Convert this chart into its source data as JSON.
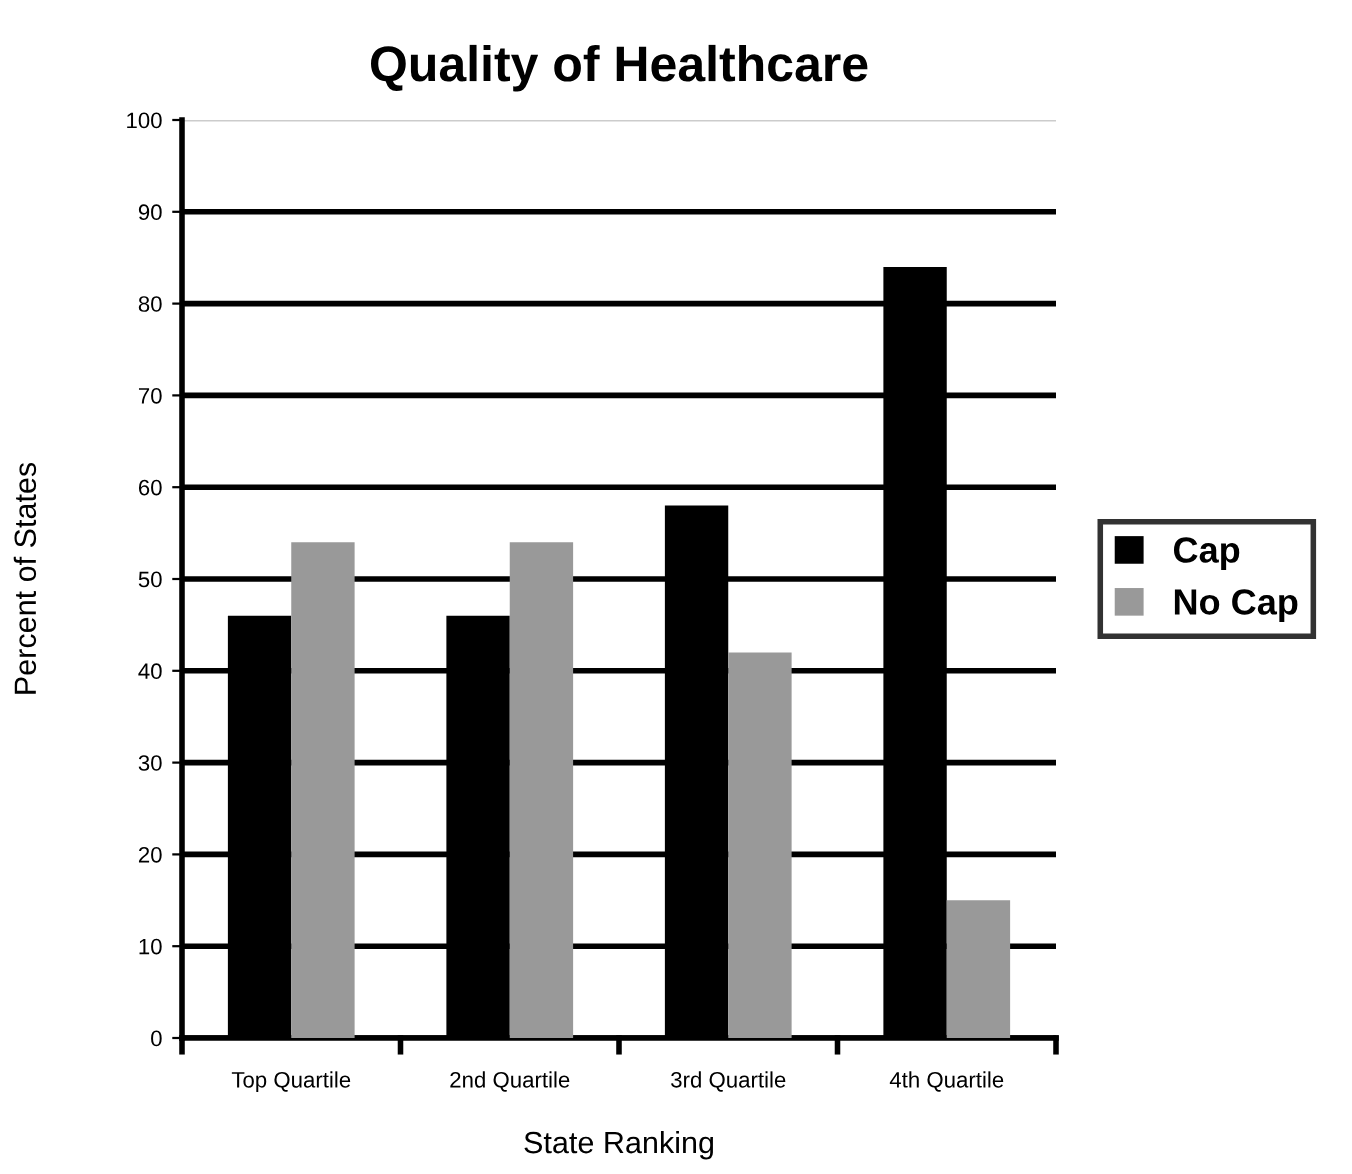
{
  "chart_data": {
    "type": "bar",
    "title": "Quality of Healthcare",
    "xlabel": "State Ranking",
    "ylabel": "Percent of States",
    "categories": [
      "Top Quartile",
      "2nd Quartile",
      "3rd Quartile",
      "4th Quartile"
    ],
    "series": [
      {
        "name": "Cap",
        "color": "#000000",
        "values": [
          46,
          46,
          58,
          84
        ]
      },
      {
        "name": "No Cap",
        "color": "#999999",
        "values": [
          54,
          54,
          42,
          15
        ]
      }
    ],
    "ylim": [
      0,
      100
    ],
    "yticks": [
      0,
      10,
      20,
      30,
      40,
      50,
      60,
      70,
      80,
      90,
      100
    ],
    "grid": "y",
    "legend": "right"
  }
}
